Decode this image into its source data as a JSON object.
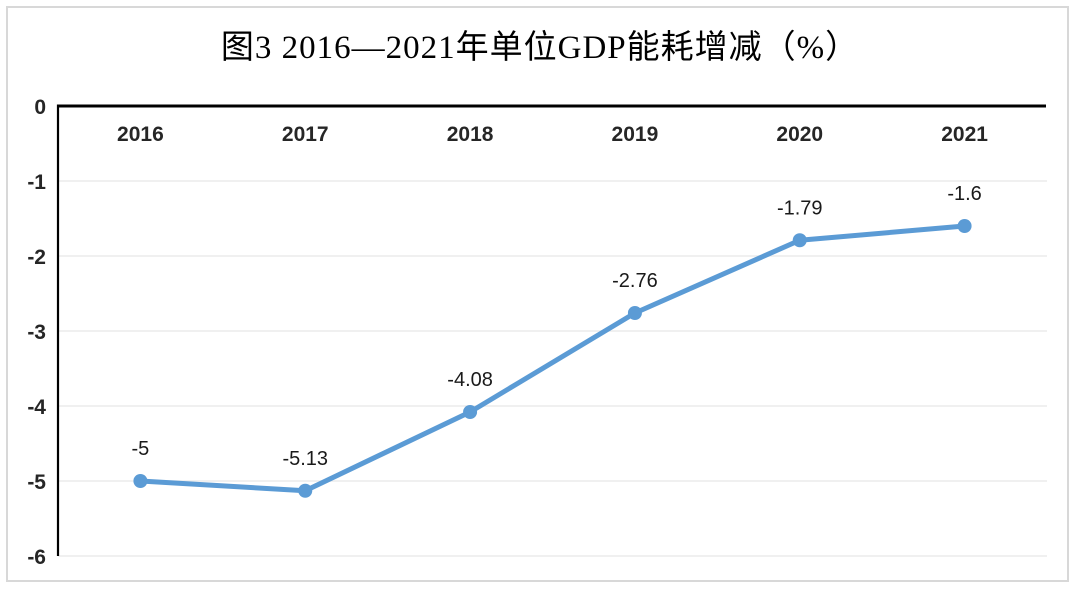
{
  "chart_data": {
    "type": "line",
    "title": "图3 2016—2021年单位GDP能耗增减（%）",
    "categories": [
      "2016",
      "2017",
      "2018",
      "2019",
      "2020",
      "2021"
    ],
    "series": [
      {
        "name": "单位GDP能耗增减",
        "values": [
          -5,
          -5.13,
          -4.08,
          -2.76,
          -1.79,
          -1.6
        ],
        "data_labels": [
          "-5",
          "-5.13",
          "-4.08",
          "-2.76",
          "-1.79",
          "-1.6"
        ]
      }
    ],
    "y_ticks": [
      {
        "label": "0",
        "value": 0
      },
      {
        "label": "-1",
        "value": -1
      },
      {
        "label": "-2",
        "value": -2
      },
      {
        "label": "-3",
        "value": -3
      },
      {
        "label": "-4",
        "value": -4
      },
      {
        "label": "-5",
        "value": -5
      },
      {
        "label": "-6",
        "value": -6
      }
    ],
    "ylim": [
      -6,
      0
    ],
    "xlabel": "",
    "ylabel": "",
    "grid": true,
    "legend_position": "none",
    "colors": {
      "line": "#5b9bd5",
      "marker": "#5b9bd5",
      "zero_axis": "#000000",
      "y_axis": "#000000",
      "gridline": "#ececec",
      "tick_text": "#262626",
      "data_label_text": "#1a1a1a",
      "frame_border": "#d8d8d8",
      "background": "#ffffff"
    }
  }
}
